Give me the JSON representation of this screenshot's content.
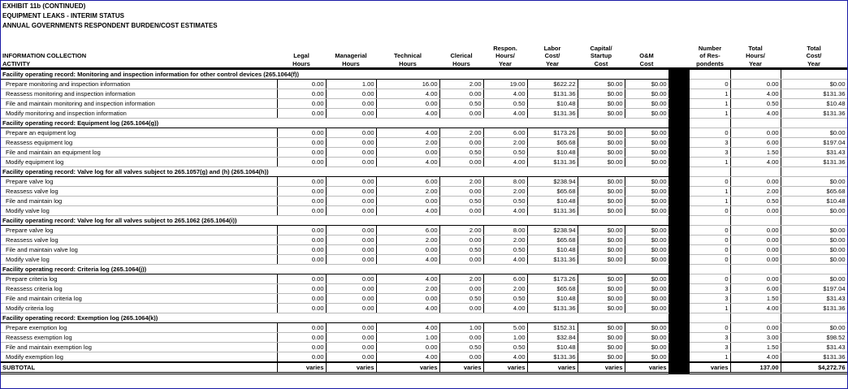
{
  "header": {
    "lines": [
      "EXHIBIT 11b (CONTINUED)",
      "EQUIPMENT LEAKS - INTERIM STATUS",
      "ANNUAL GOVERNMENTS RESPONDENT BURDEN/COST ESTIMATES"
    ]
  },
  "table": {
    "columns": [
      [
        "INFORMATION COLLECTION",
        "ACTIVITY"
      ],
      [
        "Legal",
        "Hours"
      ],
      [
        "Managerial",
        "Hours"
      ],
      [
        "Technical",
        "Hours"
      ],
      [
        "Clerical",
        "Hours"
      ],
      [
        "Respon.",
        "Hours/",
        "Year"
      ],
      [
        "Labor",
        "Cost/",
        "Year"
      ],
      [
        "Capital/",
        "Startup",
        "Cost"
      ],
      [
        "O&M",
        "Cost"
      ],
      [
        "Number",
        "of Res-",
        "pondents"
      ],
      [
        "Total",
        "Hours/",
        "Year"
      ],
      [
        "Total",
        "Cost/",
        "Year"
      ]
    ],
    "sections": [
      {
        "title": "Facility operating record: Monitoring and inspection information for other control devices (265.1064(f))",
        "rows": [
          [
            "Prepare monitoring and inspection information",
            "0.00",
            "1.00",
            "16.00",
            "2.00",
            "19.00",
            "$622.22",
            "$0.00",
            "$0.00",
            "0",
            "0.00",
            "$0.00"
          ],
          [
            "Reassess monitoring and inspection information",
            "0.00",
            "0.00",
            "4.00",
            "0.00",
            "4.00",
            "$131.36",
            "$0.00",
            "$0.00",
            "1",
            "4.00",
            "$131.36"
          ],
          [
            "File and maintain monitoring and inspection information",
            "0.00",
            "0.00",
            "0.00",
            "0.50",
            "0.50",
            "$10.48",
            "$0.00",
            "$0.00",
            "1",
            "0.50",
            "$10.48"
          ],
          [
            "Modify monitoring and inspection information",
            "0.00",
            "0.00",
            "4.00",
            "0.00",
            "4.00",
            "$131.36",
            "$0.00",
            "$0.00",
            "1",
            "4.00",
            "$131.36"
          ]
        ]
      },
      {
        "title": "Facility operating record: Equipment log (265.1064(g))",
        "rows": [
          [
            "Prepare an equipment log",
            "0.00",
            "0.00",
            "4.00",
            "2.00",
            "6.00",
            "$173.26",
            "$0.00",
            "$0.00",
            "0",
            "0.00",
            "$0.00"
          ],
          [
            "Reassess equipment log",
            "0.00",
            "0.00",
            "2.00",
            "0.00",
            "2.00",
            "$65.68",
            "$0.00",
            "$0.00",
            "3",
            "6.00",
            "$197.04"
          ],
          [
            "File and maintain an equipment log",
            "0.00",
            "0.00",
            "0.00",
            "0.50",
            "0.50",
            "$10.48",
            "$0.00",
            "$0.00",
            "3",
            "1.50",
            "$31.43"
          ],
          [
            "Modify equipment log",
            "0.00",
            "0.00",
            "4.00",
            "0.00",
            "4.00",
            "$131.36",
            "$0.00",
            "$0.00",
            "1",
            "4.00",
            "$131.36"
          ]
        ]
      },
      {
        "title": "Facility operating record: Valve log for all valves subject to 265.1057(g) and (h) (265.1064(h))",
        "rows": [
          [
            "Prepare valve log",
            "0.00",
            "0.00",
            "6.00",
            "2.00",
            "8.00",
            "$238.94",
            "$0.00",
            "$0.00",
            "0",
            "0.00",
            "$0.00"
          ],
          [
            "Reassess valve log",
            "0.00",
            "0.00",
            "2.00",
            "0.00",
            "2.00",
            "$65.68",
            "$0.00",
            "$0.00",
            "1",
            "2.00",
            "$65.68"
          ],
          [
            "File and maintain log",
            "0.00",
            "0.00",
            "0.00",
            "0.50",
            "0.50",
            "$10.48",
            "$0.00",
            "$0.00",
            "1",
            "0.50",
            "$10.48"
          ],
          [
            "Modify valve log",
            "0.00",
            "0.00",
            "4.00",
            "0.00",
            "4.00",
            "$131.36",
            "$0.00",
            "$0.00",
            "0",
            "0.00",
            "$0.00"
          ]
        ]
      },
      {
        "title": "Facility operating record: Valve log for all valves subject to 265.1062 (265.1064(i))",
        "rows": [
          [
            "Prepare valve log",
            "0.00",
            "0.00",
            "6.00",
            "2.00",
            "8.00",
            "$238.94",
            "$0.00",
            "$0.00",
            "0",
            "0.00",
            "$0.00"
          ],
          [
            "Reassess valve log",
            "0.00",
            "0.00",
            "2.00",
            "0.00",
            "2.00",
            "$65.68",
            "$0.00",
            "$0.00",
            "0",
            "0.00",
            "$0.00"
          ],
          [
            "File and maintain valve log",
            "0.00",
            "0.00",
            "0.00",
            "0.50",
            "0.50",
            "$10.48",
            "$0.00",
            "$0.00",
            "0",
            "0.00",
            "$0.00"
          ],
          [
            "Modify valve log",
            "0.00",
            "0.00",
            "4.00",
            "0.00",
            "4.00",
            "$131.36",
            "$0.00",
            "$0.00",
            "0",
            "0.00",
            "$0.00"
          ]
        ]
      },
      {
        "title": "Facility operating record: Criteria log (265.1064(j))",
        "rows": [
          [
            "Prepare criteria log",
            "0.00",
            "0.00",
            "4.00",
            "2.00",
            "6.00",
            "$173.26",
            "$0.00",
            "$0.00",
            "0",
            "0.00",
            "$0.00"
          ],
          [
            "Reassess criteria log",
            "0.00",
            "0.00",
            "2.00",
            "0.00",
            "2.00",
            "$65.68",
            "$0.00",
            "$0.00",
            "3",
            "6.00",
            "$197.04"
          ],
          [
            "File and maintain criteria log",
            "0.00",
            "0.00",
            "0.00",
            "0.50",
            "0.50",
            "$10.48",
            "$0.00",
            "$0.00",
            "3",
            "1.50",
            "$31.43"
          ],
          [
            "Modify criteria log",
            "0.00",
            "0.00",
            "4.00",
            "0.00",
            "4.00",
            "$131.36",
            "$0.00",
            "$0.00",
            "1",
            "4.00",
            "$131.36"
          ]
        ]
      },
      {
        "title": "Facility operating record: Exemption log (265.1064(k))",
        "rows": [
          [
            "Prepare exemption log",
            "0.00",
            "0.00",
            "4.00",
            "1.00",
            "5.00",
            "$152.31",
            "$0.00",
            "$0.00",
            "0",
            "0.00",
            "$0.00"
          ],
          [
            "Reassess exemption log",
            "0.00",
            "0.00",
            "1.00",
            "0.00",
            "1.00",
            "$32.84",
            "$0.00",
            "$0.00",
            "3",
            "3.00",
            "$98.52"
          ],
          [
            "File and maintain exemption log",
            "0.00",
            "0.00",
            "0.00",
            "0.50",
            "0.50",
            "$10.48",
            "$0.00",
            "$0.00",
            "3",
            "1.50",
            "$31.43"
          ],
          [
            "Modify exemption log",
            "0.00",
            "0.00",
            "4.00",
            "0.00",
            "4.00",
            "$131.36",
            "$0.00",
            "$0.00",
            "1",
            "4.00",
            "$131.36"
          ]
        ]
      }
    ],
    "subtotal": [
      "SUBTOTAL",
      "varies",
      "varies",
      "varies",
      "varies",
      "varies",
      "varies",
      "varies",
      "varies",
      "varies",
      "137.00",
      "$4,272.76"
    ]
  }
}
